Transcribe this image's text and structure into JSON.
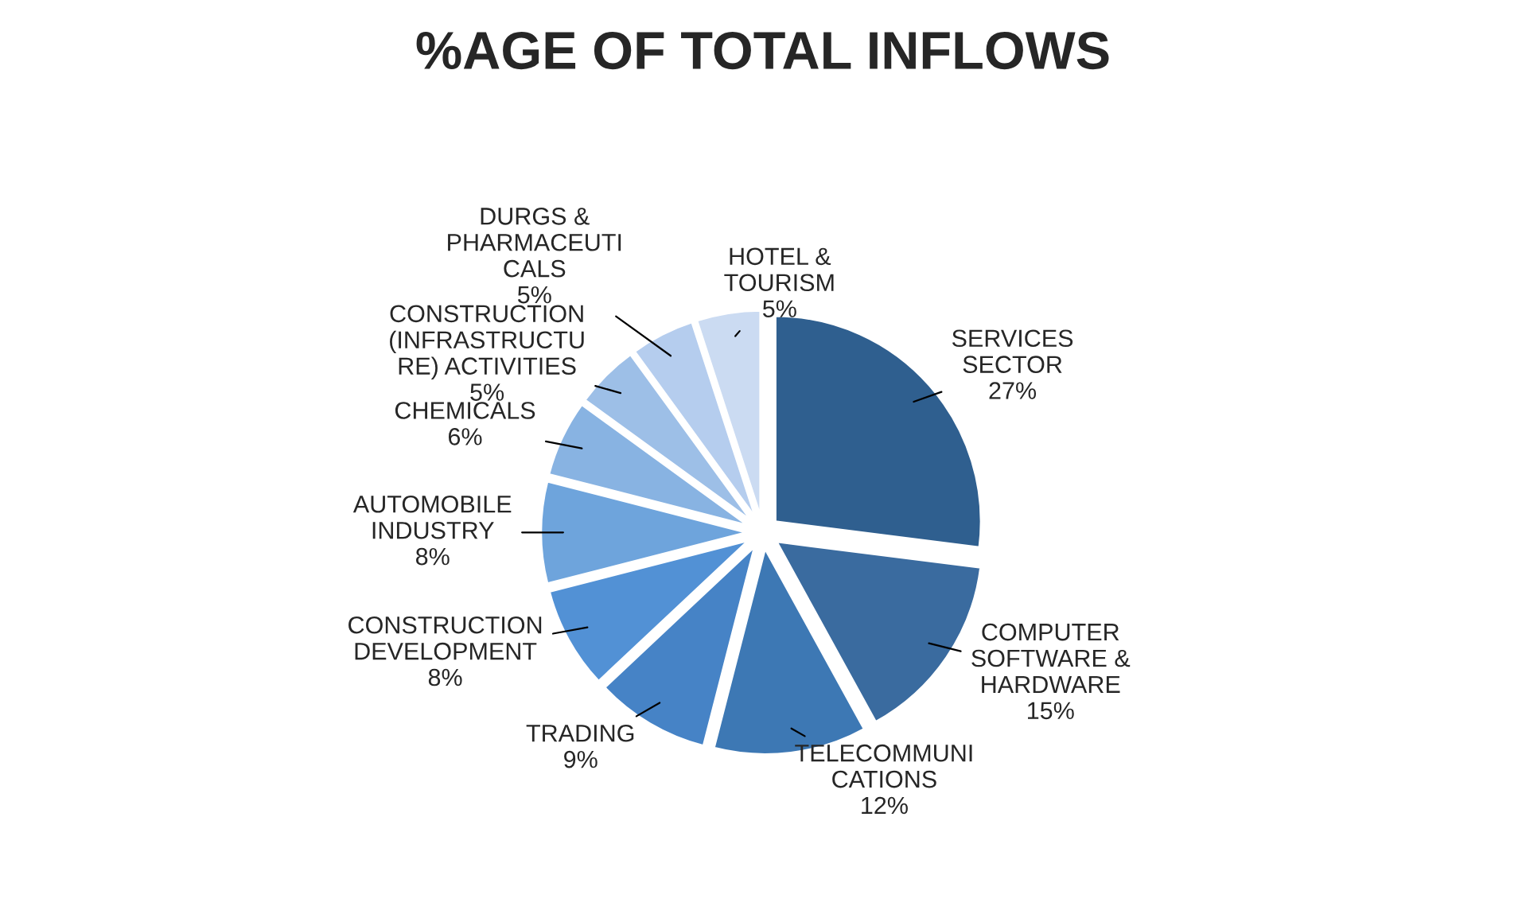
{
  "chart_data": {
    "type": "pie",
    "title": "%AGE OF TOTAL INFLOWS",
    "categories": [
      "SERVICES\nSECTOR",
      "COMPUTER\nSOFTWARE &\nHARDWARE",
      "TELECOMMUNI\nCATIONS",
      "TRADING",
      "CONSTRUCTION\nDEVELOPMENT",
      "AUTOMOBILE\nINDUSTRY",
      "CHEMICALS",
      "CONSTRUCTION\n(INFRASTRUCTU\nRE) ACTIVITIES",
      "DURGS &\nPHARMACEUTI\nCALS",
      "HOTEL &\nTOURISM"
    ],
    "values": [
      27,
      15,
      12,
      9,
      8,
      8,
      6,
      5,
      5,
      5
    ],
    "value_labels": [
      "27%",
      "15%",
      "12%",
      "9%",
      "8%",
      "8%",
      "6%",
      "5%",
      "5%",
      "5%"
    ],
    "colors": [
      "#2f5f8f",
      "#3a6b9f",
      "#3d78b4",
      "#4683c6",
      "#5291d5",
      "#6ea4dc",
      "#88b3e2",
      "#9dbfe7",
      "#b5cdee",
      "#cbdbf2"
    ],
    "legend": false
  }
}
